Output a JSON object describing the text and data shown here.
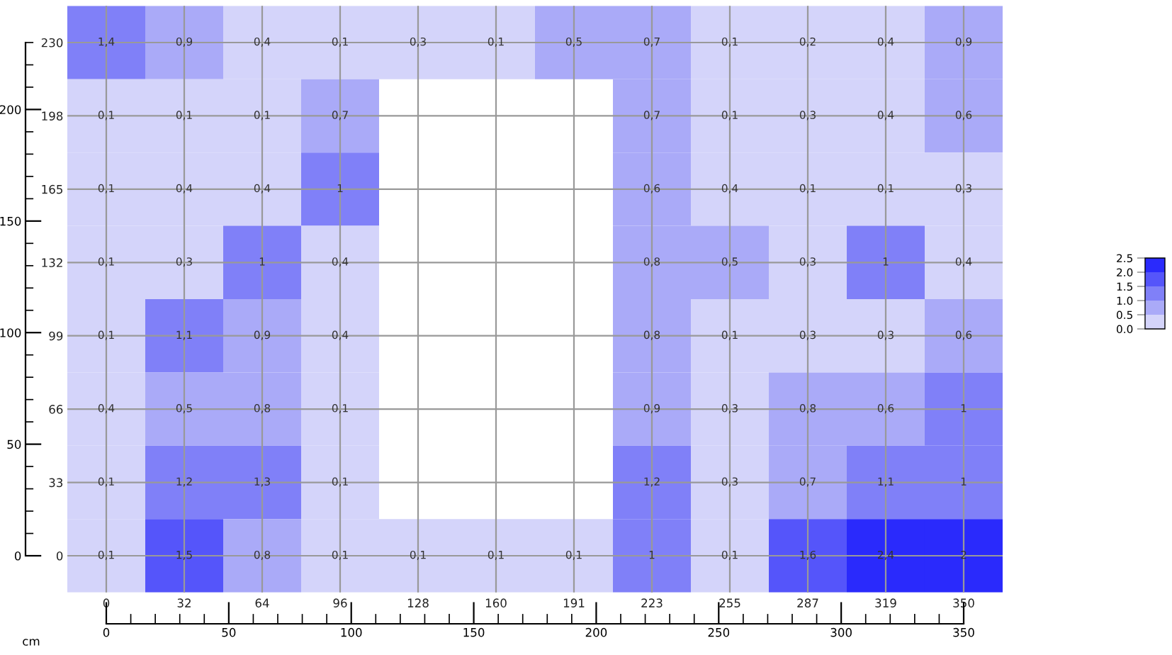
{
  "chart_data": {
    "type": "heatmap",
    "categories": [
      "0",
      "32",
      "64",
      "96",
      "128",
      "160",
      "191",
      "223",
      "255",
      "287",
      "319",
      "350"
    ],
    "y_categories": [
      "230",
      "198",
      "165",
      "132",
      "99",
      "66",
      "33",
      "0"
    ],
    "cells": [
      [
        1.4,
        0.9,
        0.4,
        0.1,
        0.3,
        0.1,
        0.5,
        0.7,
        0.1,
        0.2,
        0.4,
        0.9
      ],
      [
        0.1,
        0.1,
        0.1,
        0.7,
        null,
        null,
        null,
        0.7,
        0.1,
        0.3,
        0.4,
        0.6
      ],
      [
        0.1,
        0.4,
        0.4,
        1,
        null,
        null,
        null,
        0.6,
        0.4,
        0.1,
        0.1,
        0.3
      ],
      [
        0.1,
        0.3,
        1,
        0.4,
        null,
        null,
        null,
        0.8,
        0.5,
        0.3,
        1,
        0.4
      ],
      [
        0.1,
        1.1,
        0.9,
        0.4,
        null,
        null,
        null,
        0.8,
        0.1,
        0.3,
        0.3,
        0.6
      ],
      [
        0.4,
        0.5,
        0.8,
        0.1,
        null,
        null,
        null,
        0.9,
        0.3,
        0.8,
        0.6,
        1
      ],
      [
        0.1,
        1.2,
        1.3,
        0.1,
        null,
        null,
        null,
        1.2,
        0.3,
        0.7,
        1.1,
        1
      ],
      [
        0.1,
        1.5,
        0.8,
        0.1,
        0.1,
        0.1,
        0.1,
        1,
        0.1,
        1.6,
        2.4,
        2
      ]
    ],
    "cell_labels": [
      [
        "1,4",
        "0,9",
        "0,4",
        "0,1",
        "0,3",
        "0,1",
        "0,5",
        "0,7",
        "0,1",
        "0,2",
        "0,4",
        "0,9"
      ],
      [
        "0,1",
        "0,1",
        "0,1",
        "0,7",
        null,
        null,
        null,
        "0,7",
        "0,1",
        "0,3",
        "0,4",
        "0,6"
      ],
      [
        "0,1",
        "0,4",
        "0,4",
        "1",
        null,
        null,
        null,
        "0,6",
        "0,4",
        "0,1",
        "0,1",
        "0,3"
      ],
      [
        "0,1",
        "0,3",
        "1",
        "0,4",
        null,
        null,
        null,
        "0,8",
        "0,5",
        "0,3",
        "1",
        "0,4"
      ],
      [
        "0,1",
        "1,1",
        "0,9",
        "0,4",
        null,
        null,
        null,
        "0,8",
        "0,1",
        "0,3",
        "0,3",
        "0,6"
      ],
      [
        "0,4",
        "0,5",
        "0,8",
        "0,1",
        null,
        null,
        null,
        "0,9",
        "0,3",
        "0,8",
        "0,6",
        "1"
      ],
      [
        "0,1",
        "1,2",
        "1,3",
        "0,1",
        null,
        null,
        null,
        "1,2",
        "0,3",
        "0,7",
        "1,1",
        "1"
      ],
      [
        "0,1",
        "1,5",
        "0,8",
        "0,1",
        "0,1",
        "0,1",
        "0,1",
        "1",
        "0,1",
        "1,6",
        "2,4",
        "2"
      ]
    ],
    "colors": [
      "#d4d4fa",
      "#aaaaf8",
      "#8080f8",
      "#5555fa",
      "#2a2afc"
    ],
    "clim": [
      0,
      2.5
    ],
    "cticks": [
      {
        "value": 0,
        "label": "0.0"
      },
      {
        "value": 0.5,
        "label": "0.5"
      },
      {
        "value": 1,
        "label": "1.0"
      },
      {
        "value": 1.5,
        "label": "1.5"
      },
      {
        "value": 2,
        "label": "2.0"
      },
      {
        "value": 2.5,
        "label": "2.5"
      }
    ],
    "x2label": "cm",
    "x2lim": [
      0,
      350
    ],
    "x2ticks": [
      0,
      50,
      100,
      150,
      200,
      250,
      300,
      350
    ],
    "y2lim": [
      0,
      230
    ],
    "y2ticks": [
      0,
      50,
      100,
      150,
      200
    ],
    "grid": true
  }
}
